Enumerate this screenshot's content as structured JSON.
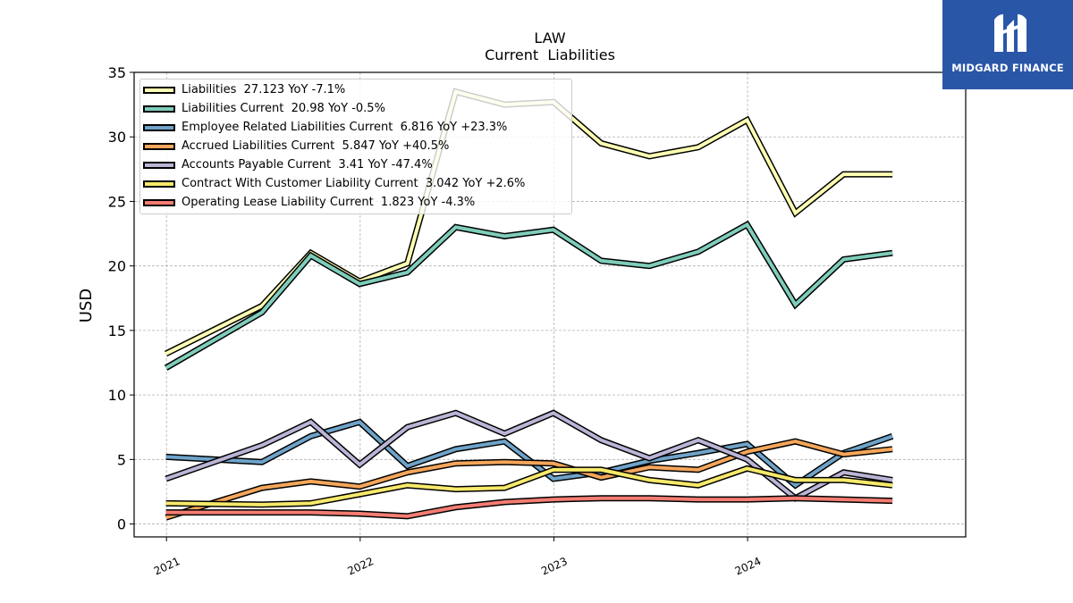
{
  "chart_data": {
    "type": "line",
    "title": "LAW",
    "subtitle": "Current  Liabilities",
    "ylabel": "USD",
    "xlabel": "",
    "ylim": [
      -1,
      35
    ],
    "yticks": [
      0,
      5,
      10,
      15,
      20,
      25,
      30,
      35
    ],
    "xticks": [
      {
        "value": "2021-01-01",
        "label": "2021"
      },
      {
        "value": "2022-01-01",
        "label": "2022"
      },
      {
        "value": "2023-01-01",
        "label": "2023"
      },
      {
        "value": "2024-01-01",
        "label": "2024"
      }
    ],
    "xlim": [
      "2020-11-01",
      "2025-02-15"
    ],
    "grid": true,
    "legend_position": "top-left",
    "x": [
      "2020-12-31",
      "2021-06-30",
      "2021-09-30",
      "2021-12-31",
      "2022-03-31",
      "2022-06-30",
      "2022-09-30",
      "2022-12-31",
      "2023-03-31",
      "2023-06-30",
      "2023-09-30",
      "2023-12-31",
      "2024-03-31",
      "2024-06-30",
      "2024-09-30"
    ],
    "series": [
      {
        "name": "Liabilities",
        "legend": "Liabilities  27.123 YoY -7.1%",
        "color": "#ffffb3",
        "values": [
          13.2,
          16.9,
          21.0,
          18.8,
          20.2,
          33.5,
          32.5,
          32.7,
          29.5,
          28.5,
          29.2,
          31.3,
          24.1,
          27.1,
          27.1
        ]
      },
      {
        "name": "Liabilities Current",
        "legend": "Liabilities Current  20.98 YoY -0.5%",
        "color": "#7fcdbb",
        "values": [
          12.1,
          16.4,
          20.8,
          18.6,
          19.5,
          23.0,
          22.3,
          22.8,
          20.4,
          20.0,
          21.1,
          23.2,
          17.0,
          20.5,
          21.0
        ]
      },
      {
        "name": "Employee Related Liabilities Current",
        "legend": "Employee Related Liabilities Current  6.816 YoY +23.3%",
        "color": "#6fa3c9",
        "values": [
          5.2,
          4.8,
          6.8,
          7.9,
          4.5,
          5.8,
          6.4,
          3.5,
          4.0,
          4.9,
          5.5,
          6.2,
          3.0,
          5.5,
          6.8
        ]
      },
      {
        "name": "Accrued Liabilities Current",
        "legend": "Accrued Liabilities Current  5.847 YoY +40.5%",
        "color": "#f5a65b",
        "values": [
          0.5,
          2.8,
          3.3,
          2.9,
          4.0,
          4.7,
          4.8,
          4.7,
          3.6,
          4.4,
          4.2,
          5.6,
          6.4,
          5.4,
          5.8
        ]
      },
      {
        "name": "Accounts Payable Current",
        "legend": "Accounts Payable Current  3.41 YoY -47.4%",
        "color": "#bcb4d6",
        "values": [
          3.5,
          6.1,
          7.9,
          4.6,
          7.5,
          8.6,
          7.0,
          8.6,
          6.5,
          5.1,
          6.5,
          5.0,
          2.0,
          4.0,
          3.4
        ]
      },
      {
        "name": "Contract With Customer Liability Current",
        "legend": "Contract With Customer Liability Current  3.042 YoY +2.6%",
        "color": "#f7e96a",
        "values": [
          1.6,
          1.5,
          1.6,
          2.3,
          3.0,
          2.7,
          2.8,
          4.2,
          4.2,
          3.4,
          3.0,
          4.3,
          3.4,
          3.4,
          3.0
        ]
      },
      {
        "name": "Operating Lease Liability Current",
        "legend": "Operating Lease Liability Current  1.823 YoY -4.3%",
        "color": "#f47c72",
        "values": [
          0.9,
          0.9,
          0.9,
          0.8,
          0.6,
          1.3,
          1.7,
          1.9,
          2.0,
          2.0,
          1.9,
          1.9,
          2.0,
          1.9,
          1.8
        ]
      }
    ]
  },
  "branding": {
    "logo_text": "MIDGARD FINANCE",
    "logo_color": "#2a56a8"
  }
}
